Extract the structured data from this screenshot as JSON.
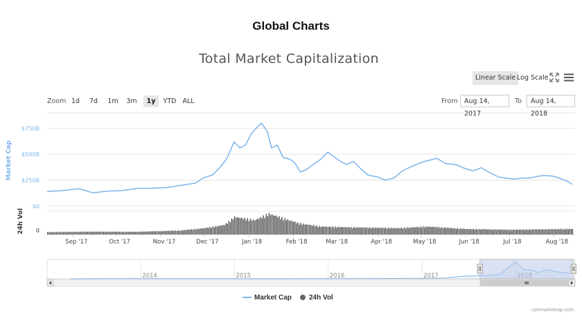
{
  "page_title": "Global Charts",
  "chart_title": "Total Market Capitalization",
  "scale_buttons": {
    "linear": "Linear Scale",
    "log": "Log Scale"
  },
  "zoom": {
    "label": "Zoom",
    "options": [
      "1d",
      "7d",
      "1m",
      "3m",
      "1y",
      "YTD",
      "ALL"
    ],
    "active": "1y"
  },
  "range": {
    "from_label": "From",
    "from_value": "Aug 14, 2017",
    "to_label": "To",
    "to_value": "Aug 14, 2018"
  },
  "legend": {
    "market_cap": "Market Cap",
    "vol": "24h Vol"
  },
  "credits": "coinmarketcap.com",
  "colors": {
    "market_cap_line": "#7cb5ec",
    "volume_bars": "#444444",
    "navigator_mask": "#b5c4e6",
    "axis_text": "#7cb5ec"
  },
  "chart_data": [
    {
      "type": "line",
      "title": "Total Market Capitalization",
      "ylabel": "Market Cap",
      "ylim": [
        0,
        900
      ],
      "y_unit": "B",
      "y_ticks": [
        "$0",
        "$250B",
        "$500B",
        "$750B"
      ],
      "x_ticks": [
        "Sep '17",
        "Oct '17",
        "Nov '17",
        "Dec '17",
        "Jan '18",
        "Feb '18",
        "Mar '18",
        "Apr '18",
        "May '18",
        "Jun '18",
        "Jul '18",
        "Aug '18"
      ],
      "series": [
        {
          "name": "Market Cap",
          "x": [
            "2017-08-14",
            "2017-08-25",
            "2017-09-05",
            "2017-09-15",
            "2017-09-25",
            "2017-10-05",
            "2017-10-15",
            "2017-10-25",
            "2017-11-05",
            "2017-11-15",
            "2017-11-25",
            "2017-12-01",
            "2017-12-07",
            "2017-12-12",
            "2017-12-17",
            "2017-12-22",
            "2017-12-26",
            "2017-12-30",
            "2018-01-03",
            "2018-01-07",
            "2018-01-10",
            "2018-01-14",
            "2018-01-17",
            "2018-01-21",
            "2018-01-25",
            "2018-01-30",
            "2018-02-02",
            "2018-02-06",
            "2018-02-10",
            "2018-02-15",
            "2018-02-20",
            "2018-02-25",
            "2018-03-01",
            "2018-03-05",
            "2018-03-10",
            "2018-03-15",
            "2018-03-20",
            "2018-03-25",
            "2018-04-01",
            "2018-04-06",
            "2018-04-12",
            "2018-04-18",
            "2018-04-24",
            "2018-05-01",
            "2018-05-06",
            "2018-05-12",
            "2018-05-18",
            "2018-05-25",
            "2018-06-01",
            "2018-06-06",
            "2018-06-12",
            "2018-06-18",
            "2018-06-24",
            "2018-06-29",
            "2018-07-05",
            "2018-07-10",
            "2018-07-15",
            "2018-07-20",
            "2018-07-25",
            "2018-07-31",
            "2018-08-05",
            "2018-08-10",
            "2018-08-14"
          ],
          "values": [
            142,
            150,
            168,
            128,
            144,
            150,
            170,
            172,
            178,
            200,
            222,
            275,
            300,
            370,
            460,
            620,
            560,
            590,
            700,
            760,
            800,
            720,
            560,
            590,
            470,
            450,
            420,
            330,
            350,
            400,
            450,
            520,
            480,
            440,
            400,
            430,
            360,
            300,
            280,
            250,
            270,
            340,
            380,
            420,
            440,
            460,
            410,
            400,
            360,
            340,
            370,
            320,
            280,
            270,
            260,
            270,
            270,
            285,
            295,
            290,
            270,
            245,
            210
          ]
        }
      ]
    },
    {
      "type": "bar",
      "title": "",
      "ylabel": "24h Vol",
      "y_ticks": [
        "0"
      ],
      "series": [
        {
          "name": "24h Vol",
          "x": [
            "2017-08-14",
            "2017-09-14",
            "2017-10-14",
            "2017-11-14",
            "2017-12-01",
            "2017-12-15",
            "2017-12-22",
            "2018-01-05",
            "2018-01-15",
            "2018-02-05",
            "2018-02-20",
            "2018-03-15",
            "2018-04-15",
            "2018-05-05",
            "2018-06-01",
            "2018-07-01",
            "2018-08-14"
          ],
          "values": [
            1.5,
            1.8,
            1.7,
            2.5,
            4,
            6,
            11,
            9,
            13,
            7,
            5,
            4.5,
            4,
            5,
            3.5,
            3,
            3.5
          ]
        }
      ]
    },
    {
      "type": "area",
      "title": "",
      "x_ticks": [
        "2014",
        "2015",
        "2016",
        "2017",
        "2018"
      ],
      "selected_range": [
        "Aug 14, 2017",
        "Aug 14, 2018"
      ],
      "series": [
        {
          "name": "Market Cap",
          "x": [
            "2013-04",
            "2014-01",
            "2014-06",
            "2015-01",
            "2015-06",
            "2016-01",
            "2016-06",
            "2017-01",
            "2017-04",
            "2017-06",
            "2017-09",
            "2017-11",
            "2017-12",
            "2018-01",
            "2018-02",
            "2018-03",
            "2018-04",
            "2018-05",
            "2018-06",
            "2018-07",
            "2018-08"
          ],
          "values": [
            1.5,
            13,
            9,
            6,
            4,
            7,
            12,
            18,
            30,
            110,
            150,
            200,
            500,
            760,
            400,
            400,
            280,
            430,
            330,
            290,
            230
          ]
        }
      ]
    }
  ]
}
